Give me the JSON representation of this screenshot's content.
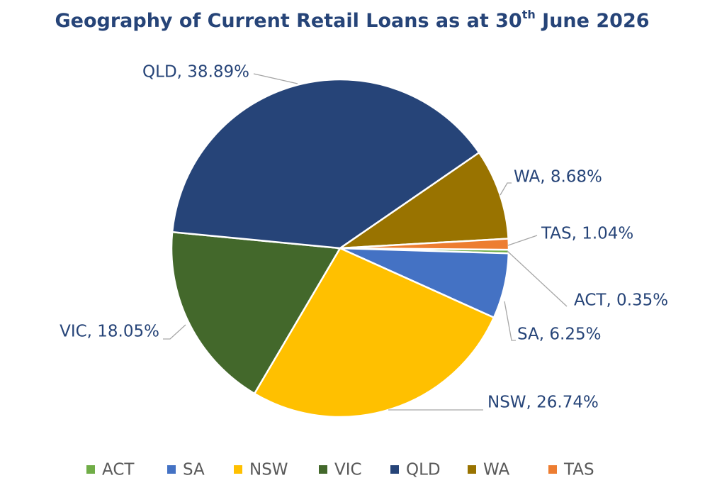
{
  "chart_data": {
    "type": "pie",
    "title": "Geography of Current Retail Loans as at 30th June 2026",
    "categories": [
      "ACT",
      "SA",
      "NSW",
      "VIC",
      "QLD",
      "WA",
      "TAS"
    ],
    "values": [
      0.35,
      6.25,
      26.74,
      18.05,
      38.89,
      8.68,
      1.04
    ],
    "value_labels": [
      "ACT, 0.35%",
      "SA, 6.25%",
      "NSW, 26.74%",
      "VIC, 18.05%",
      "QLD, 38.89%",
      "WA, 8.68%",
      "TAS, 1.04%"
    ],
    "colors": [
      "#70ad47",
      "#4472c4",
      "#ffc000",
      "#43682b",
      "#264478",
      "#997300",
      "#ed7d31"
    ],
    "legend": "bottom"
  }
}
